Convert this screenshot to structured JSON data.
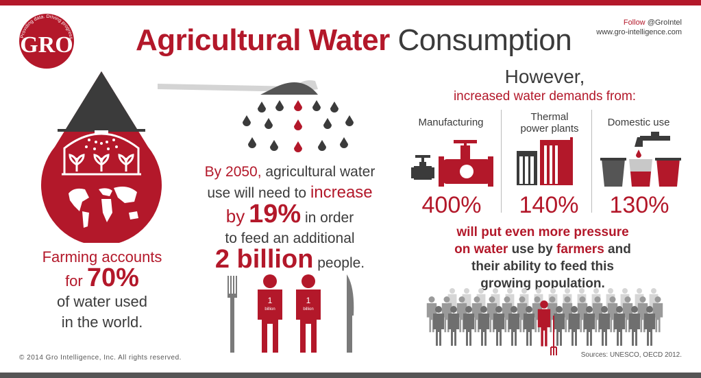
{
  "header": {
    "title_red": "Agricultural Water",
    "title_dark": "Consumption",
    "follow_label": "Follow",
    "follow_handle": "@GroIntel",
    "website": "www.gro-intelligence.com"
  },
  "logo": {
    "letters": "GRO",
    "tagline": "Providing data. Driving progress."
  },
  "farming": {
    "line1": "Farming accounts",
    "for_word": "for",
    "percent": "70%",
    "line3": "of water used",
    "line4": "in the world."
  },
  "growth": {
    "by_year": "By 2050,",
    "line1_rest": "agricultural water",
    "line2_start": "use will need to",
    "increase_word": "increase",
    "by_word": "by",
    "percent": "19%",
    "in_order": "in order",
    "line4": "to feed an additional",
    "billion": "2 billion",
    "people": "people.",
    "figure_number": "1",
    "figure_unit": "billion"
  },
  "demands": {
    "however": "However,",
    "subtitle": "increased water demands from:",
    "items": [
      {
        "label": "Manufacturing",
        "percent": "400%"
      },
      {
        "label": "Thermal power plants",
        "label_line1": "Thermal",
        "label_line2": "power plants",
        "percent": "140%"
      },
      {
        "label": "Domestic use",
        "percent": "130%"
      }
    ]
  },
  "pressure": {
    "line1": "will put even more pressure",
    "line2_red1": "on water",
    "line2_mid": "use by",
    "line2_red2": "farmers",
    "line2_end": "and",
    "line3": "their ability to feed this",
    "line4": "growing population."
  },
  "footer": {
    "copyright": "© 2014 Gro Intelligence, Inc. All rights reserved.",
    "sources": "Sources: UNESCO, OECD 2012."
  },
  "colors": {
    "accent": "#b3182a",
    "dark": "#3b3b3b",
    "grey": "#7a7a7a",
    "light_grey": "#c8c8c8"
  }
}
